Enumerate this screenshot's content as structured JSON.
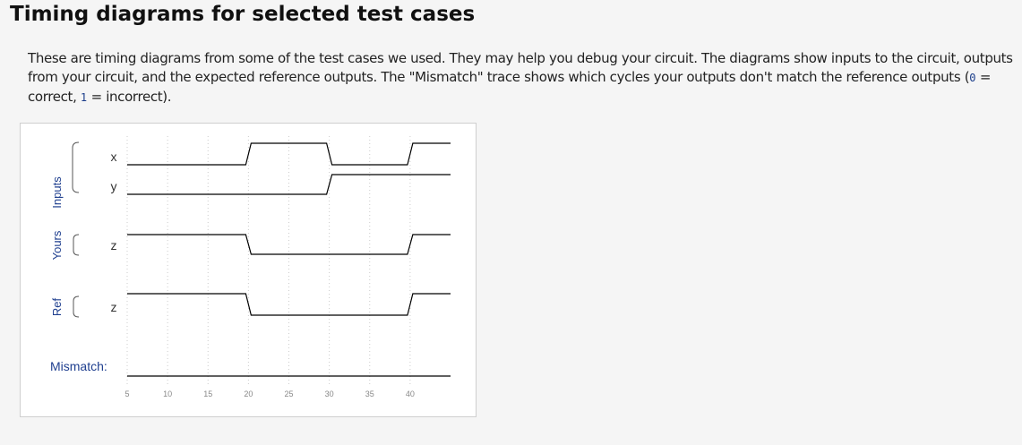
{
  "page": {
    "title": "Timing diagrams for selected test cases",
    "description_lead": "These are timing diagrams from some of the test cases we used. They may help you debug your circuit. The diagrams show inputs to the circuit, outputs from your circuit, and the expected reference outputs. The \"Mismatch\" trace shows which cycles your outputs don't match the reference outputs (",
    "code_zero": "0",
    "eq_correct": " = correct, ",
    "code_one": "1",
    "eq_incorrect": " = incorrect)."
  },
  "diagram": {
    "groups": [
      {
        "label": "Inputs",
        "signals": [
          "x",
          "y"
        ]
      },
      {
        "label": "Yours",
        "signals": [
          "z"
        ]
      },
      {
        "label": "Ref",
        "signals": [
          "z"
        ]
      }
    ],
    "mismatch_label": "Mismatch:",
    "time_ticks": [
      "5",
      "10",
      "15",
      "20",
      "25",
      "30",
      "35",
      "40"
    ],
    "time_range": [
      5,
      45
    ],
    "colors": {
      "group_label": "#1f3f8f",
      "trace": "#000000",
      "grid": "#cccccc",
      "tick": "#888888"
    },
    "traces": [
      {
        "name": "x",
        "group": "Inputs",
        "edges": [
          [
            5,
            0
          ],
          [
            20,
            1
          ],
          [
            30,
            0
          ],
          [
            40,
            1
          ]
        ]
      },
      {
        "name": "y",
        "group": "Inputs",
        "edges": [
          [
            5,
            0
          ],
          [
            30,
            1
          ]
        ]
      },
      {
        "name": "z",
        "group": "Yours",
        "edges": [
          [
            5,
            1
          ],
          [
            20,
            0
          ],
          [
            40,
            1
          ]
        ]
      },
      {
        "name": "z",
        "group": "Ref",
        "edges": [
          [
            5,
            1
          ],
          [
            20,
            0
          ],
          [
            40,
            1
          ]
        ]
      },
      {
        "name": "mismatch",
        "group": "Mismatch",
        "edges": [
          [
            5,
            0
          ]
        ]
      }
    ]
  }
}
